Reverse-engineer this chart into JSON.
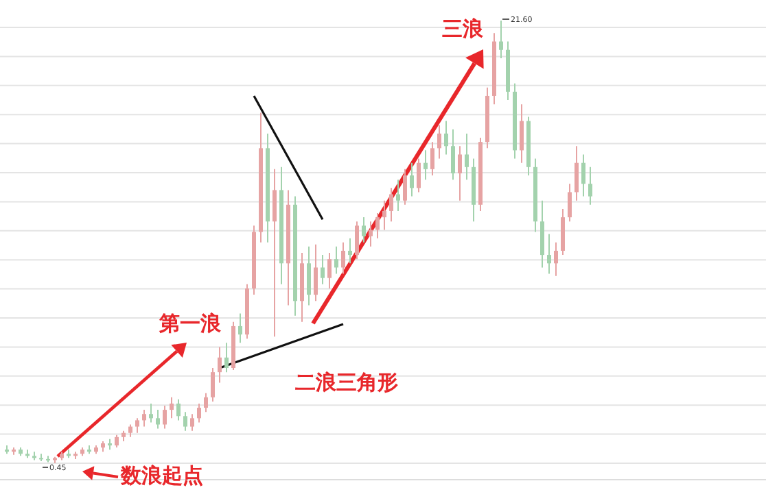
{
  "chart_data": {
    "type": "candlestick",
    "grid": "y",
    "categories": [
      null,
      null,
      null,
      null,
      null,
      null,
      null,
      null,
      null,
      null,
      null,
      null,
      null,
      null,
      null,
      null,
      null,
      null,
      null,
      null,
      null,
      null,
      null,
      null,
      null,
      null,
      null,
      null,
      null,
      null,
      null,
      null,
      null,
      null,
      null,
      null,
      null,
      null,
      null,
      null,
      null,
      null,
      null,
      null,
      null,
      null,
      null,
      null,
      null,
      null,
      null,
      null,
      null,
      null,
      null,
      null,
      null,
      null,
      null,
      null,
      null,
      null,
      null,
      null,
      null,
      null,
      null,
      null,
      null,
      null,
      null,
      null,
      null,
      null,
      null,
      null,
      null,
      null,
      null,
      null,
      null,
      null,
      null,
      null,
      null,
      null
    ],
    "ohlc": [
      [
        1.1,
        1.3,
        0.9,
        1.0
      ],
      [
        1.0,
        1.2,
        0.85,
        1.1
      ],
      [
        1.1,
        1.2,
        0.8,
        0.9
      ],
      [
        0.9,
        1.1,
        0.7,
        0.8
      ],
      [
        0.8,
        1.0,
        0.6,
        0.7
      ],
      [
        0.7,
        0.9,
        0.55,
        0.65
      ],
      [
        0.65,
        0.8,
        0.5,
        0.6
      ],
      [
        0.6,
        0.75,
        0.45,
        0.7
      ],
      [
        0.7,
        1.0,
        0.6,
        0.9
      ],
      [
        0.9,
        1.1,
        0.7,
        0.8
      ],
      [
        0.8,
        1.0,
        0.65,
        0.9
      ],
      [
        0.9,
        1.2,
        0.8,
        1.1
      ],
      [
        1.1,
        1.3,
        0.9,
        1.0
      ],
      [
        1.0,
        1.3,
        0.9,
        1.2
      ],
      [
        1.2,
        1.5,
        1.0,
        1.4
      ],
      [
        1.4,
        1.6,
        1.1,
        1.3
      ],
      [
        1.3,
        1.8,
        1.2,
        1.7
      ],
      [
        1.7,
        2.0,
        1.5,
        1.9
      ],
      [
        1.9,
        2.3,
        1.7,
        2.2
      ],
      [
        2.2,
        2.6,
        1.9,
        2.5
      ],
      [
        2.5,
        3.0,
        2.2,
        2.8
      ],
      [
        2.8,
        3.3,
        2.4,
        2.6
      ],
      [
        2.6,
        3.0,
        2.1,
        2.3
      ],
      [
        2.3,
        3.2,
        2.1,
        3.0
      ],
      [
        3.0,
        3.6,
        2.6,
        3.3
      ],
      [
        3.3,
        3.5,
        2.5,
        2.7
      ],
      [
        2.7,
        2.9,
        2.0,
        2.2
      ],
      [
        2.2,
        2.8,
        2.0,
        2.6
      ],
      [
        2.6,
        3.3,
        2.4,
        3.1
      ],
      [
        3.1,
        3.8,
        2.9,
        3.6
      ],
      [
        3.6,
        5.0,
        3.4,
        4.8
      ],
      [
        4.8,
        6.0,
        4.3,
        5.5
      ],
      [
        5.5,
        6.2,
        4.8,
        5.0
      ],
      [
        5.0,
        7.2,
        4.9,
        7.0
      ],
      [
        7.0,
        7.6,
        6.2,
        6.6
      ],
      [
        6.6,
        9.0,
        6.4,
        8.8
      ],
      [
        8.8,
        11.8,
        8.5,
        11.5
      ],
      [
        11.5,
        17.2,
        11.0,
        15.5
      ],
      [
        15.5,
        16.2,
        11.0,
        12.0
      ],
      [
        12.0,
        14.5,
        6.5,
        13.5
      ],
      [
        13.5,
        14.6,
        9.0,
        10.0
      ],
      [
        10.0,
        13.5,
        8.0,
        12.8
      ],
      [
        12.8,
        13.2,
        7.5,
        8.2
      ],
      [
        8.2,
        10.5,
        7.2,
        10.0
      ],
      [
        10.0,
        10.8,
        8.0,
        8.5
      ],
      [
        8.5,
        10.9,
        8.2,
        9.8
      ],
      [
        9.8,
        10.4,
        9.0,
        9.3
      ],
      [
        9.3,
        10.5,
        8.8,
        10.2
      ],
      [
        10.2,
        10.8,
        9.5,
        9.8
      ],
      [
        9.8,
        11.0,
        9.5,
        10.6
      ],
      [
        10.6,
        11.2,
        10.0,
        10.4
      ],
      [
        10.4,
        12.0,
        10.2,
        11.8
      ],
      [
        11.8,
        12.2,
        11.0,
        11.3
      ],
      [
        11.3,
        12.0,
        10.8,
        11.6
      ],
      [
        11.6,
        12.4,
        11.2,
        12.2
      ],
      [
        12.2,
        13.0,
        11.6,
        12.5
      ],
      [
        12.5,
        13.6,
        12.0,
        13.3
      ],
      [
        13.3,
        14.0,
        12.5,
        13.0
      ],
      [
        13.0,
        14.5,
        12.8,
        14.2
      ],
      [
        14.2,
        14.8,
        13.2,
        13.6
      ],
      [
        13.6,
        15.0,
        13.4,
        14.8
      ],
      [
        14.8,
        15.4,
        14.0,
        14.5
      ],
      [
        14.5,
        15.8,
        14.2,
        15.5
      ],
      [
        15.5,
        16.6,
        15.0,
        16.2
      ],
      [
        16.2,
        16.8,
        15.2,
        15.6
      ],
      [
        15.6,
        16.4,
        14.0,
        14.3
      ],
      [
        14.3,
        15.6,
        13.0,
        15.2
      ],
      [
        15.2,
        16.2,
        14.0,
        14.6
      ],
      [
        14.6,
        15.0,
        12.0,
        12.8
      ],
      [
        12.8,
        16.0,
        12.5,
        15.8
      ],
      [
        15.8,
        18.4,
        15.5,
        18.0
      ],
      [
        18.0,
        21.0,
        17.6,
        20.6
      ],
      [
        20.6,
        21.6,
        19.8,
        20.2
      ],
      [
        20.2,
        20.6,
        17.8,
        18.2
      ],
      [
        18.2,
        18.6,
        15.0,
        15.4
      ],
      [
        15.4,
        17.6,
        14.8,
        16.8
      ],
      [
        16.8,
        17.0,
        14.2,
        14.6
      ],
      [
        14.6,
        15.0,
        11.5,
        12.0
      ],
      [
        12.0,
        13.0,
        9.8,
        10.4
      ],
      [
        10.4,
        11.4,
        9.5,
        10.0
      ],
      [
        10.0,
        11.0,
        9.4,
        10.6
      ],
      [
        10.6,
        12.6,
        10.4,
        12.2
      ],
      [
        12.2,
        13.8,
        12.0,
        13.4
      ],
      [
        13.4,
        15.6,
        13.0,
        14.8
      ],
      [
        14.8,
        15.2,
        13.2,
        13.8
      ],
      [
        13.8,
        14.6,
        12.8,
        13.2
      ]
    ],
    "colors": [
      "#a3d2ad",
      "#e6a3a3",
      "#a3d2ad",
      "#a3d2ad",
      "#a3d2ad",
      "#a3d2ad",
      "#a3d2ad",
      "#e6a3a3",
      "#e6a3a3",
      "#a3d2ad",
      "#e6a3a3",
      "#e6a3a3",
      "#a3d2ad",
      "#e6a3a3",
      "#e6a3a3",
      "#a3d2ad",
      "#e6a3a3",
      "#e6a3a3",
      "#e6a3a3",
      "#e6a3a3",
      "#e6a3a3",
      "#a3d2ad",
      "#a3d2ad",
      "#e6a3a3",
      "#e6a3a3",
      "#a3d2ad",
      "#a3d2ad",
      "#e6a3a3",
      "#e6a3a3",
      "#e6a3a3",
      "#e6a3a3",
      "#e6a3a3",
      "#a3d2ad",
      "#e6a3a3",
      "#a3d2ad",
      "#e6a3a3",
      "#e6a3a3",
      "#e6a3a3",
      "#a3d2ad",
      "#e6a3a3",
      "#a3d2ad",
      "#e6a3a3",
      "#a3d2ad",
      "#e6a3a3",
      "#a3d2ad",
      "#e6a3a3",
      "#a3d2ad",
      "#e6a3a3",
      "#a3d2ad",
      "#e6a3a3",
      "#a3d2ad",
      "#e6a3a3",
      "#a3d2ad",
      "#e6a3a3",
      "#e6a3a3",
      "#e6a3a3",
      "#e6a3a3",
      "#a3d2ad",
      "#e6a3a3",
      "#a3d2ad",
      "#e6a3a3",
      "#a3d2ad",
      "#e6a3a3",
      "#e6a3a3",
      "#a3d2ad",
      "#a3d2ad",
      "#e6a3a3",
      "#a3d2ad",
      "#a3d2ad",
      "#e6a3a3",
      "#e6a3a3",
      "#e6a3a3",
      "#a3d2ad",
      "#a3d2ad",
      "#a3d2ad",
      "#e6a3a3",
      "#a3d2ad",
      "#a3d2ad",
      "#a3d2ad",
      "#a3d2ad",
      "#e6a3a3",
      "#e6a3a3",
      "#e6a3a3",
      "#e6a3a3",
      "#a3d2ad",
      "#a3d2ad"
    ],
    "series": [
      {
        "type": "line",
        "color": "#111111",
        "values": [
          null,
          null,
          null,
          null,
          null,
          null,
          null,
          null,
          null,
          null,
          null,
          null,
          null,
          null,
          null,
          null,
          null,
          null,
          null,
          null,
          null,
          null,
          null,
          null,
          null,
          null,
          null,
          null,
          null,
          null,
          null,
          null,
          null,
          null,
          null,
          null,
          18.0,
          null,
          null,
          null,
          null,
          null,
          null,
          null,
          null,
          null,
          12.1,
          null,
          null,
          null,
          null,
          null,
          null,
          null,
          null,
          null,
          null,
          null,
          null,
          null,
          null,
          null,
          null,
          null,
          null,
          null,
          null,
          null,
          null,
          null,
          null,
          null,
          null,
          null,
          null,
          null,
          null,
          null,
          null,
          null,
          null,
          null,
          null,
          null,
          null,
          null
        ]
      },
      {
        "type": "line",
        "color": "#111111",
        "values": [
          null,
          null,
          null,
          null,
          null,
          null,
          null,
          null,
          null,
          null,
          null,
          null,
          null,
          null,
          null,
          null,
          null,
          null,
          null,
          null,
          null,
          null,
          null,
          null,
          null,
          null,
          null,
          null,
          null,
          null,
          null,
          5.0,
          null,
          null,
          null,
          null,
          null,
          null,
          null,
          null,
          null,
          null,
          null,
          null,
          null,
          null,
          null,
          null,
          null,
          7.1,
          null,
          null,
          null,
          null,
          null,
          null,
          null,
          null,
          null,
          null,
          null,
          null,
          null,
          null,
          null,
          null,
          null,
          null,
          null,
          null,
          null,
          null,
          null,
          null,
          null,
          null,
          null,
          null,
          null,
          null,
          null,
          null,
          null,
          null,
          null,
          null
        ]
      }
    ],
    "annotations": [
      "0.45",
      "21.60",
      "第一浪",
      "二浪三角形",
      "三浪",
      "数浪起点"
    ]
  }
}
